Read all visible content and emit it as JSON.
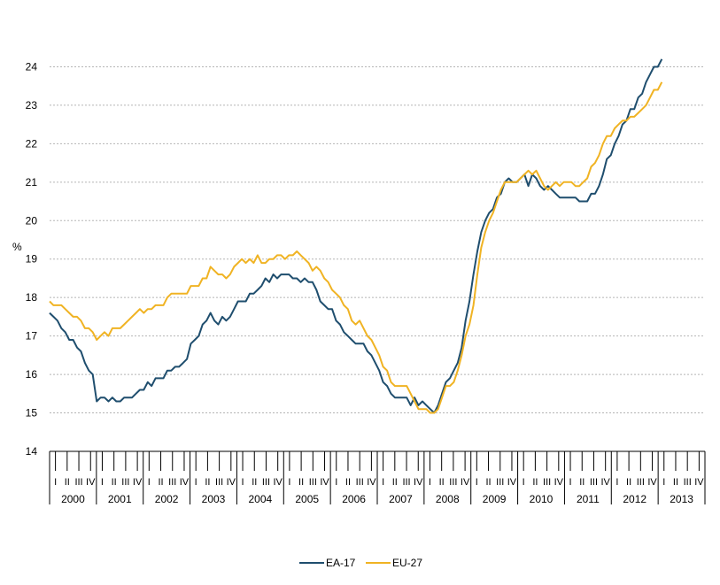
{
  "chart_data": {
    "type": "line",
    "title": "",
    "xlabel": "",
    "ylabel": "%",
    "ylim": [
      14,
      25
    ],
    "yticks": [
      14,
      15,
      16,
      17,
      18,
      19,
      20,
      21,
      22,
      23,
      24
    ],
    "grid": "horizontal dotted",
    "legend_placement": "bottom-center",
    "years": [
      "2000",
      "2001",
      "2002",
      "2003",
      "2004",
      "2005",
      "2006",
      "2007",
      "2008",
      "2009",
      "2010",
      "2011",
      "2012",
      "2013"
    ],
    "quarter_labels": [
      "I",
      "II",
      "III",
      "IV"
    ],
    "series": [
      {
        "name": "EA-17",
        "color": "#1f4e6e",
        "values": [
          17.6,
          17.5,
          17.4,
          17.2,
          17.1,
          16.9,
          16.9,
          16.7,
          16.6,
          16.3,
          16.1,
          16.0,
          15.3,
          15.4,
          15.4,
          15.3,
          15.4,
          15.3,
          15.3,
          15.4,
          15.4,
          15.4,
          15.5,
          15.6,
          15.6,
          15.8,
          15.7,
          15.9,
          15.9,
          15.9,
          16.1,
          16.1,
          16.2,
          16.2,
          16.3,
          16.4,
          16.8,
          16.9,
          17.0,
          17.3,
          17.4,
          17.6,
          17.4,
          17.3,
          17.5,
          17.4,
          17.5,
          17.7,
          17.9,
          17.9,
          17.9,
          18.1,
          18.1,
          18.2,
          18.3,
          18.5,
          18.4,
          18.6,
          18.5,
          18.6,
          18.6,
          18.6,
          18.5,
          18.5,
          18.4,
          18.5,
          18.4,
          18.4,
          18.2,
          17.9,
          17.8,
          17.7,
          17.7,
          17.4,
          17.3,
          17.1,
          17.0,
          16.9,
          16.8,
          16.8,
          16.8,
          16.6,
          16.5,
          16.3,
          16.1,
          15.8,
          15.7,
          15.5,
          15.4,
          15.4,
          15.4,
          15.4,
          15.2,
          15.4,
          15.2,
          15.3,
          15.2,
          15.1,
          15.0,
          15.2,
          15.5,
          15.8,
          15.9,
          16.1,
          16.3,
          16.7,
          17.4,
          17.9,
          18.6,
          19.2,
          19.7,
          20.0,
          20.2,
          20.3,
          20.6,
          20.7,
          21.0,
          21.1,
          21.0,
          21.0,
          21.1,
          21.2,
          20.9,
          21.2,
          21.1,
          20.9,
          20.8,
          20.9,
          20.8,
          20.7,
          20.6,
          20.6,
          20.6,
          20.6,
          20.6,
          20.5,
          20.5,
          20.5,
          20.7,
          20.7,
          20.9,
          21.2,
          21.6,
          21.7,
          22.0,
          22.2,
          22.5,
          22.6,
          22.9,
          22.9,
          23.2,
          23.3,
          23.6,
          23.8,
          24.0,
          24.0,
          24.2
        ]
      },
      {
        "name": "EU-27",
        "color": "#f0b323",
        "values": [
          17.9,
          17.8,
          17.8,
          17.8,
          17.7,
          17.6,
          17.5,
          17.5,
          17.4,
          17.2,
          17.2,
          17.1,
          16.9,
          17.0,
          17.1,
          17.0,
          17.2,
          17.2,
          17.2,
          17.3,
          17.4,
          17.5,
          17.6,
          17.7,
          17.6,
          17.7,
          17.7,
          17.8,
          17.8,
          17.8,
          18.0,
          18.1,
          18.1,
          18.1,
          18.1,
          18.1,
          18.3,
          18.3,
          18.3,
          18.5,
          18.5,
          18.8,
          18.7,
          18.6,
          18.6,
          18.5,
          18.6,
          18.8,
          18.9,
          19.0,
          18.9,
          19.0,
          18.9,
          19.1,
          18.9,
          18.9,
          19.0,
          19.0,
          19.1,
          19.1,
          19.0,
          19.1,
          19.1,
          19.2,
          19.1,
          19.0,
          18.9,
          18.7,
          18.8,
          18.7,
          18.5,
          18.4,
          18.2,
          18.1,
          18.0,
          17.8,
          17.7,
          17.4,
          17.3,
          17.4,
          17.2,
          17.0,
          16.9,
          16.7,
          16.5,
          16.2,
          16.1,
          15.8,
          15.7,
          15.7,
          15.7,
          15.7,
          15.5,
          15.3,
          15.1,
          15.1,
          15.1,
          15.0,
          15.0,
          15.1,
          15.4,
          15.7,
          15.7,
          15.8,
          16.1,
          16.5,
          17.0,
          17.3,
          17.8,
          18.6,
          19.3,
          19.7,
          20.0,
          20.2,
          20.5,
          20.8,
          21.0,
          21.0,
          21.0,
          21.0,
          21.1,
          21.2,
          21.3,
          21.2,
          21.3,
          21.1,
          20.9,
          20.8,
          20.9,
          21.0,
          20.9,
          21.0,
          21.0,
          21.0,
          20.9,
          20.9,
          21.0,
          21.1,
          21.4,
          21.5,
          21.7,
          22.0,
          22.2,
          22.2,
          22.4,
          22.5,
          22.6,
          22.6,
          22.7,
          22.7,
          22.8,
          22.9,
          23.0,
          23.2,
          23.4,
          23.4,
          23.6
        ]
      }
    ]
  }
}
